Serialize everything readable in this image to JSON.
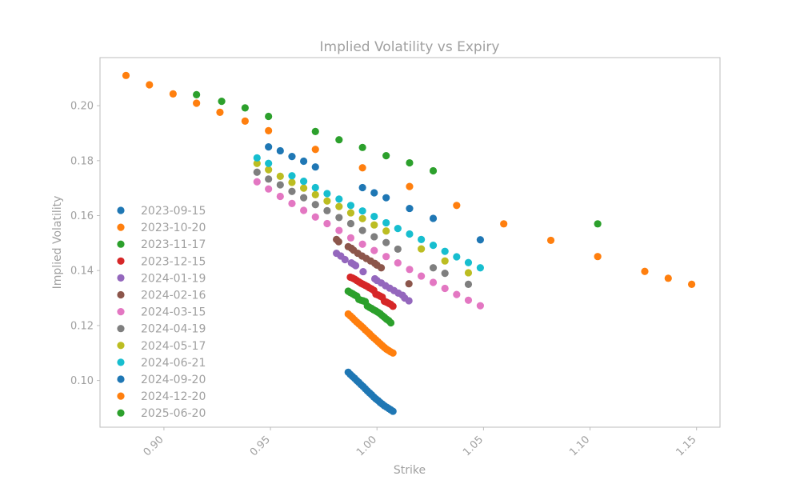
{
  "chart_data": {
    "type": "scatter",
    "title": "Implied Volatility vs Expiry",
    "xlabel": "Strike",
    "ylabel": "Implied Volatility",
    "xlim": [
      0.87,
      1.161
    ],
    "ylim": [
      0.083,
      0.2175
    ],
    "xticks": [
      {
        "value": 0.9,
        "label": "0.90"
      },
      {
        "value": 0.95,
        "label": "0.95"
      },
      {
        "value": 1.0,
        "label": "1.00"
      },
      {
        "value": 1.05,
        "label": "1.05"
      },
      {
        "value": 1.1,
        "label": "1.10"
      },
      {
        "value": 1.15,
        "label": "1.15"
      }
    ],
    "yticks": [
      {
        "value": 0.1,
        "label": "0.10"
      },
      {
        "value": 0.12,
        "label": "0.12"
      },
      {
        "value": 0.14,
        "label": "0.14"
      },
      {
        "value": 0.16,
        "label": "0.16"
      },
      {
        "value": 0.18,
        "label": "0.18"
      },
      {
        "value": 0.2,
        "label": "0.20"
      }
    ],
    "legend_position": "center-left",
    "grid": false,
    "series": [
      {
        "name": "2023-09-15",
        "color": "#1f77b4",
        "x": [
          0.9865,
          0.9875,
          0.9885,
          0.9895,
          0.9905,
          0.9915,
          0.9925,
          0.9935,
          0.9945,
          0.9955,
          0.9965,
          0.9975,
          0.9985,
          0.9995,
          1.0005,
          1.0015,
          1.0025,
          1.0035,
          1.0045,
          1.0055,
          1.0065,
          1.0075
        ],
        "y": [
          0.103,
          0.1022,
          0.1015,
          0.1008,
          0.1,
          0.0993,
          0.0985,
          0.0978,
          0.097,
          0.0962,
          0.0955,
          0.0948,
          0.094,
          0.0933,
          0.0927,
          0.092,
          0.0914,
          0.0908,
          0.0903,
          0.0898,
          0.0893,
          0.0888
        ]
      },
      {
        "name": "2023-10-20",
        "color": "#ff7f0e",
        "x": [
          0.9865,
          0.9875,
          0.9885,
          0.9895,
          0.9905,
          0.9915,
          0.9925,
          0.9935,
          0.9945,
          0.9955,
          0.9965,
          0.9975,
          0.9985,
          0.9995,
          1.0005,
          1.0015,
          1.0025,
          1.0035,
          1.0045,
          1.0055,
          1.0065,
          1.0075
        ],
        "y": [
          0.1242,
          0.1235,
          0.1228,
          0.122,
          0.1213,
          0.1206,
          0.1199,
          0.1192,
          0.1184,
          0.1177,
          0.117,
          0.1162,
          0.1155,
          0.1148,
          0.1141,
          0.1134,
          0.1127,
          0.112,
          0.1114,
          0.1109,
          0.1104,
          0.11
        ]
      },
      {
        "name": "2023-11-17",
        "color": "#2ca02c",
        "x": [
          0.9865,
          0.9875,
          0.9885,
          0.9895,
          0.9905,
          0.9915,
          0.9925,
          0.9935,
          0.9945,
          0.9955,
          0.9965,
          0.9975,
          0.9985,
          0.9995,
          1.0005,
          1.0015,
          1.0025,
          1.0035,
          1.0045,
          1.0055,
          1.0065
        ],
        "y": [
          0.1325,
          0.132,
          0.1316,
          0.1311,
          0.1307,
          0.1295,
          0.1292,
          0.129,
          0.1287,
          0.1271,
          0.1266,
          0.1262,
          0.1257,
          0.1253,
          0.1248,
          0.1243,
          0.1236,
          0.123,
          0.1223,
          0.1218,
          0.121
        ]
      },
      {
        "name": "2023-12-15",
        "color": "#d62728",
        "x": [
          0.9875,
          0.9885,
          0.9895,
          0.9905,
          0.9915,
          0.9925,
          0.9935,
          0.9945,
          0.9955,
          0.9965,
          0.9975,
          0.9985,
          0.9995,
          1.0005,
          1.0015,
          1.0025,
          1.0035,
          1.0045,
          1.0055,
          1.0065,
          1.0075
        ],
        "y": [
          0.1376,
          0.1373,
          0.1369,
          0.1364,
          0.1359,
          0.1354,
          0.135,
          0.1346,
          0.1342,
          0.1337,
          0.1333,
          0.1328,
          0.1314,
          0.1311,
          0.1307,
          0.1303,
          0.1288,
          0.1285,
          0.1281,
          0.1277,
          0.127
        ]
      },
      {
        "name": "2024-01-19",
        "color": "#9467bd",
        "x": [
          0.981,
          0.983,
          0.985,
          0.988,
          0.989,
          0.99,
          0.9935,
          0.999,
          1.0,
          1.002,
          1.004,
          1.006,
          1.008,
          1.01,
          1.012,
          1.013,
          1.015
        ],
        "y": [
          0.1463,
          0.1453,
          0.144,
          0.1428,
          0.1423,
          0.1418,
          0.1396,
          0.137,
          0.1364,
          0.1355,
          0.1345,
          0.1336,
          0.1327,
          0.1318,
          0.131,
          0.13,
          0.129
        ]
      },
      {
        "name": "2024-02-16",
        "color": "#8c564b",
        "x": [
          0.981,
          0.982,
          0.9865,
          0.988,
          0.989,
          0.991,
          0.993,
          0.995,
          0.997,
          0.999,
          1.0,
          1.002,
          1.015
        ],
        "y": [
          0.1513,
          0.1505,
          0.1487,
          0.1481,
          0.1474,
          0.1463,
          0.1453,
          0.1444,
          0.1435,
          0.1426,
          0.142,
          0.141,
          0.1352
        ]
      },
      {
        "name": "2024-03-15",
        "color": "#e377c2",
        "x": [
          0.9437,
          0.9491,
          0.9546,
          0.9601,
          0.9656,
          0.9711,
          0.9766,
          0.9822,
          0.9877,
          0.9932,
          0.9987,
          1.0043,
          1.0098,
          1.0153,
          1.0208,
          1.0264,
          1.0319,
          1.0374,
          1.0429,
          1.0485
        ],
        "y": [
          0.1723,
          0.1697,
          0.167,
          0.1644,
          0.1619,
          0.1595,
          0.1571,
          0.1546,
          0.1519,
          0.1496,
          0.1473,
          0.1451,
          0.1428,
          0.1404,
          0.138,
          0.1357,
          0.1335,
          0.1313,
          0.1292,
          0.1272
        ]
      },
      {
        "name": "2024-04-19",
        "color": "#7f7f7f",
        "x": [
          0.9437,
          0.9491,
          0.9546,
          0.9601,
          0.9656,
          0.9711,
          0.9766,
          0.9822,
          0.9877,
          0.9932,
          0.9987,
          1.0043,
          1.0098,
          1.0264,
          1.0319,
          1.0429
        ],
        "y": [
          0.1758,
          0.1733,
          0.1712,
          0.1688,
          0.1665,
          0.164,
          0.1618,
          0.1593,
          0.1571,
          0.1546,
          0.1523,
          0.1502,
          0.1478,
          0.141,
          0.139,
          0.135
        ]
      },
      {
        "name": "2024-05-17",
        "color": "#bcbd22",
        "x": [
          0.9437,
          0.9491,
          0.9546,
          0.9601,
          0.9656,
          0.9711,
          0.9766,
          0.9822,
          0.9877,
          0.9932,
          0.9987,
          1.0043,
          1.0208,
          1.0319,
          1.0429
        ],
        "y": [
          0.179,
          0.1767,
          0.1743,
          0.1721,
          0.17,
          0.1676,
          0.1653,
          0.1633,
          0.161,
          0.1589,
          0.1566,
          0.1544,
          0.1479,
          0.1435,
          0.1392
        ]
      },
      {
        "name": "2024-06-21",
        "color": "#17becf",
        "x": [
          0.9437,
          0.9491,
          0.9601,
          0.9656,
          0.9711,
          0.9766,
          0.9822,
          0.9877,
          0.9932,
          0.9987,
          1.0043,
          1.0098,
          1.0153,
          1.0208,
          1.0264,
          1.0319,
          1.0374,
          1.0429,
          1.0485
        ],
        "y": [
          0.181,
          0.179,
          0.1745,
          0.1725,
          0.1702,
          0.168,
          0.166,
          0.1637,
          0.1617,
          0.1597,
          0.1574,
          0.1553,
          0.1533,
          0.1513,
          0.1492,
          0.147,
          0.145,
          0.1429,
          0.141
        ]
      },
      {
        "name": "2024-09-20",
        "color": "#1f77b4",
        "x": [
          0.9491,
          0.9546,
          0.9601,
          0.9656,
          0.9711,
          0.9932,
          0.9987,
          1.0043,
          1.0153,
          1.0264,
          1.0485
        ],
        "y": [
          0.185,
          0.1836,
          0.1815,
          0.1798,
          0.1777,
          0.1702,
          0.1683,
          0.1665,
          0.1626,
          0.159,
          0.1512
        ]
      },
      {
        "name": "2024-12-20",
        "color": "#ff7f0e",
        "x": [
          0.8822,
          0.8932,
          0.9043,
          0.9153,
          0.9263,
          0.9381,
          0.9491,
          0.9711,
          0.9932,
          1.0153,
          1.0374,
          1.0595,
          1.0816,
          1.1036,
          1.1257,
          1.1367,
          1.1477
        ],
        "y": [
          0.211,
          0.2076,
          0.2043,
          0.2009,
          0.1976,
          0.1944,
          0.1909,
          0.1841,
          0.1774,
          0.1706,
          0.1637,
          0.157,
          0.151,
          0.1451,
          0.1397,
          0.1372,
          0.135
        ]
      },
      {
        "name": "2025-06-20",
        "color": "#2ca02c",
        "x": [
          0.9153,
          0.9271,
          0.9381,
          0.9491,
          0.9711,
          0.9822,
          0.9932,
          1.0043,
          1.0153,
          1.0264,
          1.1036
        ],
        "y": [
          0.204,
          0.2016,
          0.1992,
          0.1961,
          0.1906,
          0.1876,
          0.1848,
          0.1818,
          0.1792,
          0.1763,
          0.157
        ]
      }
    ]
  }
}
